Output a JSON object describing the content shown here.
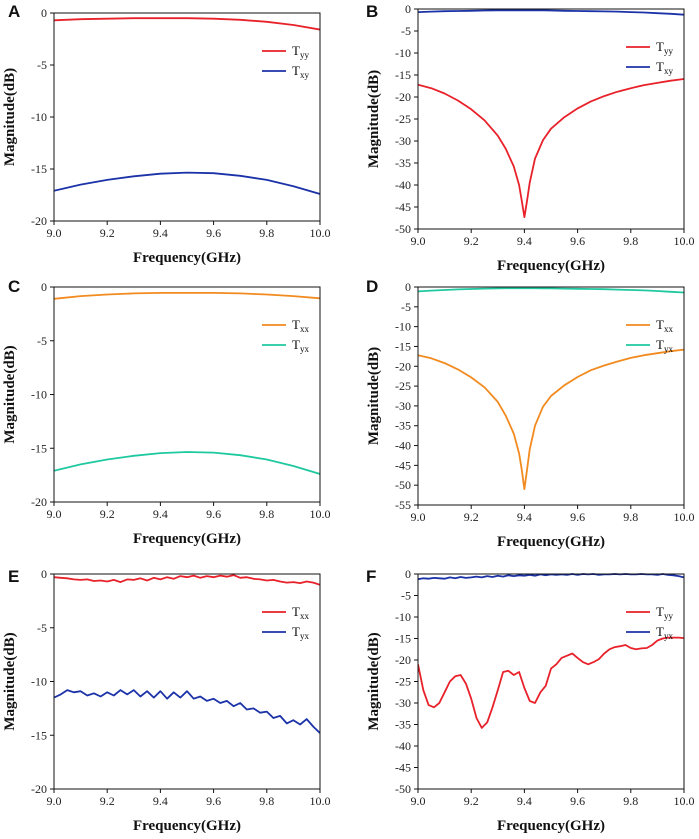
{
  "figure": {
    "x_axis_title": "Frequency(GHz)",
    "y_axis_title": "Magnitude(dB)"
  },
  "chart_data": [
    {
      "panel": "A",
      "type": "line",
      "title": "",
      "xlabel": "Frequency(GHz)",
      "ylabel": "Magnitude(dB)",
      "xlim": [
        9.0,
        10.0
      ],
      "ylim": [
        -20,
        0
      ],
      "xticks": [
        "9.0",
        "9.2",
        "9.4",
        "9.6",
        "9.8",
        "10.0"
      ],
      "yticks": [
        "0",
        "-5",
        "-10",
        "-15",
        "-20"
      ],
      "legend_position": "top-right",
      "x": [
        9.0,
        9.1,
        9.2,
        9.3,
        9.4,
        9.5,
        9.6,
        9.7,
        9.8,
        9.9,
        10.0
      ],
      "series": [
        {
          "name": "T",
          "sub": "yy",
          "color": "#e8212a",
          "values": [
            -0.7,
            -0.6,
            -0.55,
            -0.5,
            -0.5,
            -0.5,
            -0.55,
            -0.65,
            -0.85,
            -1.15,
            -1.6
          ]
        },
        {
          "name": "T",
          "sub": "xy",
          "color": "#1b32a8",
          "values": [
            -17.1,
            -16.5,
            -16.05,
            -15.7,
            -15.45,
            -15.35,
            -15.4,
            -15.65,
            -16.05,
            -16.65,
            -17.4
          ]
        }
      ]
    },
    {
      "panel": "B",
      "type": "line",
      "title": "",
      "xlabel": "Frequency(GHz)",
      "ylabel": "Magnitude(dB)",
      "xlim": [
        9.0,
        10.0
      ],
      "ylim": [
        -50,
        0
      ],
      "xticks": [
        "9.0",
        "9.2",
        "9.4",
        "9.6",
        "9.8",
        "10.0"
      ],
      "yticks": [
        "0",
        "-5",
        "-10",
        "-15",
        "-20",
        "-25",
        "-30",
        "-35",
        "-40",
        "-45",
        "-50"
      ],
      "legend_position": "top-right",
      "x": [
        9.0,
        9.05,
        9.1,
        9.15,
        9.2,
        9.25,
        9.3,
        9.33,
        9.36,
        9.38,
        9.39,
        9.4,
        9.41,
        9.42,
        9.44,
        9.47,
        9.5,
        9.55,
        9.6,
        9.65,
        9.7,
        9.75,
        9.8,
        9.85,
        9.9,
        9.95,
        10.0
      ],
      "series": [
        {
          "name": "T",
          "sub": "yy",
          "color": "#e8212a",
          "values": [
            -17.2,
            -18.0,
            -19.2,
            -20.8,
            -22.8,
            -25.3,
            -28.8,
            -31.8,
            -35.8,
            -40.0,
            -43.5,
            -47.3,
            -43.5,
            -39.5,
            -34.0,
            -29.8,
            -27.2,
            -24.6,
            -22.6,
            -21.0,
            -19.8,
            -18.8,
            -18.0,
            -17.3,
            -16.8,
            -16.3,
            -15.9
          ]
        },
        {
          "name": "T",
          "sub": "xy",
          "color": "#1b32a8",
          "values": [
            -0.7,
            -0.6,
            -0.5,
            -0.45,
            -0.4,
            -0.35,
            -0.3,
            -0.3,
            -0.3,
            -0.3,
            -0.3,
            -0.3,
            -0.3,
            -0.3,
            -0.3,
            -0.3,
            -0.35,
            -0.4,
            -0.45,
            -0.5,
            -0.55,
            -0.6,
            -0.7,
            -0.8,
            -0.95,
            -1.1,
            -1.3
          ]
        }
      ]
    },
    {
      "panel": "C",
      "type": "line",
      "title": "",
      "xlabel": "Frequency(GHz)",
      "ylabel": "Magnitude(dB)",
      "xlim": [
        9.0,
        10.0
      ],
      "ylim": [
        -20,
        0
      ],
      "xticks": [
        "9.0",
        "9.2",
        "9.4",
        "9.6",
        "9.8",
        "10.0"
      ],
      "yticks": [
        "0",
        "-5",
        "-10",
        "-15",
        "-20"
      ],
      "legend_position": "top-right",
      "x": [
        9.0,
        9.1,
        9.2,
        9.3,
        9.4,
        9.5,
        9.6,
        9.7,
        9.8,
        9.9,
        10.0
      ],
      "series": [
        {
          "name": "T",
          "sub": "xx",
          "color": "#f28a1f",
          "values": [
            -1.1,
            -0.85,
            -0.7,
            -0.6,
            -0.55,
            -0.55,
            -0.55,
            -0.6,
            -0.7,
            -0.85,
            -1.05
          ]
        },
        {
          "name": "T",
          "sub": "yx",
          "color": "#1fc9a0",
          "values": [
            -17.1,
            -16.5,
            -16.05,
            -15.7,
            -15.45,
            -15.35,
            -15.4,
            -15.65,
            -16.05,
            -16.65,
            -17.4
          ]
        }
      ]
    },
    {
      "panel": "D",
      "type": "line",
      "title": "",
      "xlabel": "Frequency(GHz)",
      "ylabel": "Magnitude(dB)",
      "xlim": [
        9.0,
        10.0
      ],
      "ylim": [
        -55,
        0
      ],
      "xticks": [
        "9.0",
        "9.2",
        "9.4",
        "9.6",
        "9.8",
        "10.0"
      ],
      "yticks": [
        "0",
        "-5",
        "-10",
        "-15",
        "-20",
        "-25",
        "-30",
        "-35",
        "-40",
        "-45",
        "-50",
        "-55"
      ],
      "legend_position": "top-right",
      "x": [
        9.0,
        9.05,
        9.1,
        9.15,
        9.2,
        9.25,
        9.3,
        9.33,
        9.36,
        9.38,
        9.39,
        9.4,
        9.41,
        9.42,
        9.44,
        9.47,
        9.5,
        9.55,
        9.6,
        9.65,
        9.7,
        9.75,
        9.8,
        9.85,
        9.9,
        9.95,
        10.0
      ],
      "series": [
        {
          "name": "T",
          "sub": "xx",
          "color": "#f28a1f",
          "values": [
            -17.2,
            -18.0,
            -19.2,
            -20.8,
            -22.8,
            -25.3,
            -29.0,
            -32.5,
            -37.0,
            -42.0,
            -46.0,
            -51.0,
            -46.0,
            -41.0,
            -35.0,
            -30.2,
            -27.5,
            -24.8,
            -22.7,
            -21.0,
            -19.8,
            -18.8,
            -17.9,
            -17.2,
            -16.7,
            -16.2,
            -15.8
          ]
        },
        {
          "name": "T",
          "sub": "yx",
          "color": "#1fc9a0",
          "values": [
            -1.1,
            -0.9,
            -0.75,
            -0.6,
            -0.5,
            -0.4,
            -0.35,
            -0.3,
            -0.3,
            -0.3,
            -0.3,
            -0.3,
            -0.3,
            -0.3,
            -0.3,
            -0.35,
            -0.35,
            -0.4,
            -0.45,
            -0.5,
            -0.55,
            -0.65,
            -0.75,
            -0.85,
            -1.0,
            -1.2,
            -1.4
          ]
        }
      ]
    },
    {
      "panel": "E",
      "type": "line",
      "title": "",
      "xlabel": "Frequency(GHz)",
      "ylabel": "Magnitude(dB)",
      "xlim": [
        9.0,
        10.0
      ],
      "ylim": [
        -20,
        0
      ],
      "xticks": [
        "9.0",
        "9.2",
        "9.4",
        "9.6",
        "9.8",
        "10.0"
      ],
      "yticks": [
        "0",
        "-5",
        "-10",
        "-15",
        "-20"
      ],
      "legend_position": "top-right",
      "x": [
        9.0,
        9.025,
        9.05,
        9.075,
        9.1,
        9.125,
        9.15,
        9.175,
        9.2,
        9.225,
        9.25,
        9.275,
        9.3,
        9.325,
        9.35,
        9.375,
        9.4,
        9.425,
        9.45,
        9.475,
        9.5,
        9.525,
        9.55,
        9.575,
        9.6,
        9.625,
        9.65,
        9.675,
        9.7,
        9.725,
        9.75,
        9.775,
        9.8,
        9.825,
        9.85,
        9.875,
        9.9,
        9.925,
        9.95,
        9.975,
        10.0
      ],
      "series": [
        {
          "name": "T",
          "sub": "xx",
          "color": "#e8212a",
          "values": [
            -0.3,
            -0.35,
            -0.4,
            -0.5,
            -0.55,
            -0.5,
            -0.65,
            -0.6,
            -0.7,
            -0.55,
            -0.75,
            -0.5,
            -0.55,
            -0.4,
            -0.6,
            -0.35,
            -0.5,
            -0.3,
            -0.45,
            -0.2,
            -0.3,
            -0.15,
            -0.35,
            -0.2,
            -0.3,
            -0.15,
            -0.25,
            -0.1,
            -0.35,
            -0.3,
            -0.45,
            -0.5,
            -0.6,
            -0.55,
            -0.7,
            -0.8,
            -0.75,
            -0.85,
            -0.7,
            -0.8,
            -1.0
          ]
        },
        {
          "name": "T",
          "sub": "yx",
          "color": "#1b32a8",
          "values": [
            -11.5,
            -11.2,
            -10.8,
            -11.0,
            -10.9,
            -11.3,
            -11.1,
            -11.4,
            -11.0,
            -11.3,
            -10.8,
            -11.2,
            -10.8,
            -11.4,
            -10.9,
            -11.5,
            -10.9,
            -11.6,
            -11.0,
            -11.5,
            -10.9,
            -11.6,
            -11.4,
            -11.8,
            -11.6,
            -12.0,
            -11.8,
            -12.3,
            -12.0,
            -12.6,
            -12.5,
            -12.9,
            -12.8,
            -13.4,
            -13.2,
            -13.9,
            -13.6,
            -14.0,
            -13.5,
            -14.2,
            -14.8
          ]
        }
      ]
    },
    {
      "panel": "F",
      "type": "line",
      "title": "",
      "xlabel": "Frequency(GHz)",
      "ylabel": "Magnitude(dB)",
      "xlim": [
        9.0,
        10.0
      ],
      "ylim": [
        -50,
        0
      ],
      "xticks": [
        "9.0",
        "9.2",
        "9.4",
        "9.6",
        "9.8",
        "10.0"
      ],
      "yticks": [
        "0",
        "-5",
        "-10",
        "-15",
        "-20",
        "-25",
        "-30",
        "-35",
        "-40",
        "-45",
        "-50"
      ],
      "legend_position": "top-right",
      "x": [
        9.0,
        9.02,
        9.04,
        9.06,
        9.08,
        9.1,
        9.12,
        9.14,
        9.16,
        9.18,
        9.2,
        9.22,
        9.24,
        9.26,
        9.28,
        9.3,
        9.32,
        9.34,
        9.36,
        9.38,
        9.4,
        9.42,
        9.44,
        9.46,
        9.48,
        9.5,
        9.52,
        9.54,
        9.56,
        9.58,
        9.6,
        9.62,
        9.64,
        9.66,
        9.68,
        9.7,
        9.72,
        9.74,
        9.76,
        9.78,
        9.8,
        9.82,
        9.84,
        9.86,
        9.88,
        9.9,
        9.92,
        9.94,
        9.96,
        9.98,
        10.0
      ],
      "series": [
        {
          "name": "T",
          "sub": "yy",
          "color": "#e8212a",
          "values": [
            -21.0,
            -27.0,
            -30.5,
            -31.0,
            -30.0,
            -27.5,
            -25.0,
            -23.8,
            -23.5,
            -25.5,
            -29.0,
            -33.5,
            -35.8,
            -34.5,
            -31.0,
            -27.0,
            -22.8,
            -22.5,
            -23.5,
            -22.8,
            -26.5,
            -29.5,
            -30.0,
            -27.5,
            -26.0,
            -22.0,
            -21.0,
            -19.5,
            -19.0,
            -18.5,
            -19.5,
            -20.5,
            -21.0,
            -20.5,
            -19.8,
            -18.5,
            -17.5,
            -17.0,
            -16.8,
            -16.5,
            -17.2,
            -17.5,
            -17.3,
            -17.2,
            -16.5,
            -15.5,
            -15.0,
            -14.8,
            -14.8,
            -14.8,
            -14.9
          ]
        },
        {
          "name": "T",
          "sub": "yx",
          "color": "#1b32a8",
          "values": [
            -1.2,
            -1.0,
            -1.1,
            -0.9,
            -1.0,
            -1.1,
            -0.8,
            -1.0,
            -0.7,
            -0.9,
            -0.8,
            -0.6,
            -0.8,
            -0.5,
            -0.7,
            -0.4,
            -0.6,
            -0.3,
            -0.5,
            -0.3,
            -0.4,
            -0.2,
            -0.4,
            -0.1,
            -0.3,
            -0.1,
            -0.2,
            -0.1,
            -0.2,
            0.0,
            -0.2,
            0.0,
            -0.1,
            0.0,
            -0.2,
            -0.1,
            -0.1,
            0.0,
            -0.1,
            0.0,
            -0.1,
            -0.1,
            0.0,
            -0.1,
            -0.1,
            -0.2,
            0.0,
            -0.2,
            -0.3,
            -0.5,
            -0.8
          ]
        }
      ]
    }
  ]
}
